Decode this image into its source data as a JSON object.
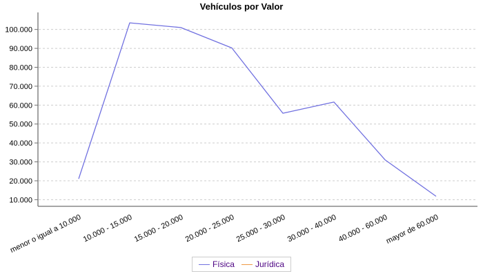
{
  "title": "Vehículos por Valor",
  "colors": {
    "background": "#FFFFFF",
    "axis": "#707070",
    "grid": "#CCCCCC",
    "tick_label": "#000000",
    "title_text": "#000000",
    "legend_text": "#4B0082",
    "legend_border": "#CCCCCC",
    "fisica_line": "#7070E0",
    "juridica_line": "#EE9944"
  },
  "chart_data": {
    "type": "line",
    "title": "Vehículos por Valor",
    "xlabel": "",
    "ylabel": "",
    "grid": "horizontal dashed gridlines only",
    "legend_position": "bottom-center",
    "categories": [
      "menor o igual a 10.000",
      "10.000 - 15.000",
      "15.000 - 20.000",
      "20.000 - 25.000",
      "25.000 - 30.000",
      "30.000 - 40.000",
      "40.000 - 60.000",
      "mayor de 60.000"
    ],
    "y_ticks": [
      {
        "value": 10000,
        "label": "10.000"
      },
      {
        "value": 20000,
        "label": "20.000"
      },
      {
        "value": 30000,
        "label": "30.000"
      },
      {
        "value": 40000,
        "label": "40.000"
      },
      {
        "value": 50000,
        "label": "50.000"
      },
      {
        "value": 60000,
        "label": "60.000"
      },
      {
        "value": 70000,
        "label": "70.000"
      },
      {
        "value": 80000,
        "label": "80.000"
      },
      {
        "value": 90000,
        "label": "90.000"
      },
      {
        "value": 100000,
        "label": "100.000"
      }
    ],
    "ylim": [
      6500,
      109000
    ],
    "series": [
      {
        "name": "Física",
        "color": "#7070E0",
        "visible": true,
        "values": [
          21000,
          103500,
          101000,
          90200,
          55700,
          61600,
          31100,
          11800
        ]
      },
      {
        "name": "Jurídica",
        "color": "#EE9944",
        "visible": false,
        "values": []
      }
    ]
  },
  "legend": {
    "entries": [
      {
        "label": "Física",
        "color": "#7070E0"
      },
      {
        "label": "Jurídica",
        "color": "#EE9944"
      }
    ]
  }
}
